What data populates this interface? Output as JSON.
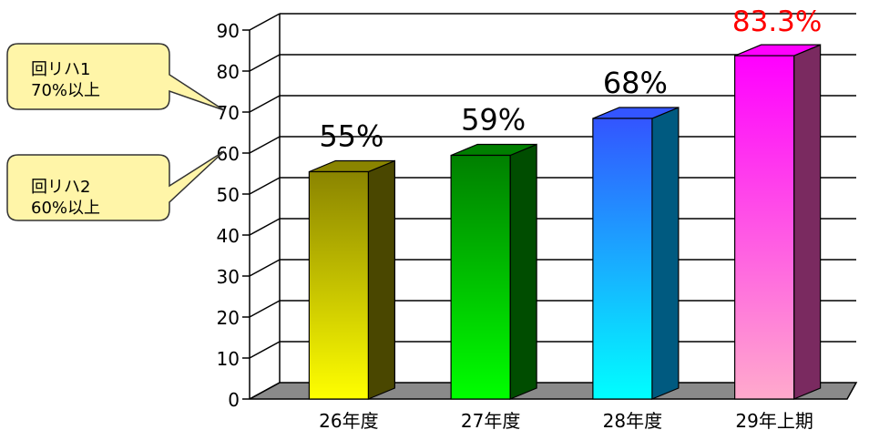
{
  "chart_data": {
    "type": "bar",
    "title": "",
    "xlabel": "",
    "ylabel": "",
    "categories": [
      "26年度",
      "27年度",
      "28年度",
      "29年上期"
    ],
    "values": [
      55,
      59,
      68,
      83.3
    ],
    "data_labels": [
      "55%",
      "59%",
      "68%",
      "83.3%"
    ],
    "ylim": [
      0,
      90
    ],
    "yticks": [
      0,
      10,
      20,
      30,
      40,
      50,
      60,
      70,
      80,
      90
    ],
    "grid": true,
    "legend": "none",
    "bar_colors": [
      {
        "top": "#8a8400",
        "bottom": "#ffff00",
        "side": "#4a4700"
      },
      {
        "top": "#007f00",
        "bottom": "#00ff00",
        "side": "#004d00"
      },
      {
        "top": "#3355ff",
        "bottom": "#00ffff",
        "side": "#005a80"
      },
      {
        "top": "#ff00ff",
        "bottom": "#ffaacc",
        "side": "#7a2a60"
      }
    ],
    "highlight_label_color": "#ff0000",
    "annotations": [
      {
        "line1": "回リハ1",
        "line2": "70%以上",
        "points_to": 70
      },
      {
        "line1": "回リハ2",
        "line2": "60%以上",
        "points_to": 60
      }
    ]
  }
}
